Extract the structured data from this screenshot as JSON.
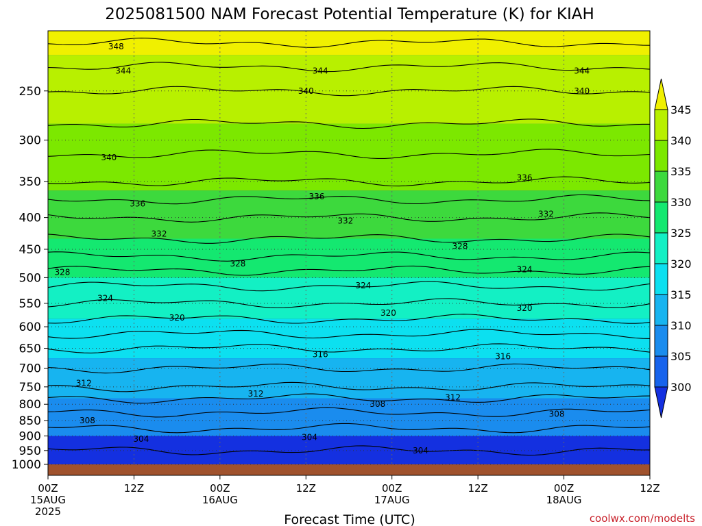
{
  "chart_data": {
    "type": "heatmap",
    "title": "2025081500 NAM Forecast Potential Temperature (K) for KIAH",
    "xlabel": "Forecast Time (UTC)",
    "ylabel": "",
    "credit": "coolwx.com/modelts",
    "x_ticks": [
      {
        "hour": 0,
        "line1": "00Z",
        "line2": "15AUG",
        "line3": "2025"
      },
      {
        "hour": 12,
        "line1": "12Z",
        "line2": "",
        "line3": ""
      },
      {
        "hour": 24,
        "line1": "00Z",
        "line2": "16AUG",
        "line3": ""
      },
      {
        "hour": 36,
        "line1": "12Z",
        "line2": "",
        "line3": ""
      },
      {
        "hour": 48,
        "line1": "00Z",
        "line2": "17AUG",
        "line3": ""
      },
      {
        "hour": 60,
        "line1": "12Z",
        "line2": "",
        "line3": ""
      },
      {
        "hour": 72,
        "line1": "00Z",
        "line2": "18AUG",
        "line3": ""
      },
      {
        "hour": 84,
        "line1": "12Z",
        "line2": "",
        "line3": ""
      }
    ],
    "xlim_hours": [
      0,
      84
    ],
    "y_axis": "pressure (hPa), log scale, decreasing upward",
    "y_ticks": [
      250,
      300,
      350,
      400,
      450,
      500,
      550,
      600,
      650,
      700,
      750,
      800,
      850,
      900,
      950,
      1000
    ],
    "ylim": [
      1000,
      200
    ],
    "grid": "dotted",
    "colorbar": {
      "levels": [
        300,
        305,
        310,
        315,
        320,
        325,
        330,
        335,
        340,
        345
      ],
      "colors": [
        "#1430e0",
        "#1763ec",
        "#1a8cee",
        "#17b4f0",
        "#0ce0f0",
        "#13f0c4",
        "#14e870",
        "#3dd93d",
        "#7ce800",
        "#b8f000",
        "#f0f000"
      ],
      "labels": [
        "300",
        "305",
        "310",
        "315",
        "320",
        "325",
        "330",
        "335",
        "340",
        "345"
      ]
    },
    "profile": [
      {
        "p": 1000,
        "theta": 303
      },
      {
        "p": 950,
        "theta": 304
      },
      {
        "p": 900,
        "theta": 305
      },
      {
        "p": 850,
        "theta": 307
      },
      {
        "p": 800,
        "theta": 309
      },
      {
        "p": 750,
        "theta": 312
      },
      {
        "p": 700,
        "theta": 314
      },
      {
        "p": 650,
        "theta": 316
      },
      {
        "p": 600,
        "theta": 319
      },
      {
        "p": 550,
        "theta": 322
      },
      {
        "p": 500,
        "theta": 325
      },
      {
        "p": 450,
        "theta": 329
      },
      {
        "p": 400,
        "theta": 332
      },
      {
        "p": 350,
        "theta": 336
      },
      {
        "p": 300,
        "theta": 339
      },
      {
        "p": 250,
        "theta": 342
      },
      {
        "p": 200,
        "theta": 347
      }
    ],
    "contour_labels": [
      {
        "hour": 9.5,
        "p": 212,
        "value": "348"
      },
      {
        "hour": 10.5,
        "p": 232,
        "value": "344"
      },
      {
        "hour": 38.0,
        "p": 232,
        "value": "344"
      },
      {
        "hour": 74.5,
        "p": 232,
        "value": "344"
      },
      {
        "hour": 36.0,
        "p": 250,
        "value": "340"
      },
      {
        "hour": 74.5,
        "p": 250,
        "value": "340"
      },
      {
        "hour": 8.5,
        "p": 320,
        "value": "340"
      },
      {
        "hour": 12.5,
        "p": 380,
        "value": "336"
      },
      {
        "hour": 37.5,
        "p": 370,
        "value": "336"
      },
      {
        "hour": 66.5,
        "p": 345,
        "value": "336"
      },
      {
        "hour": 15.5,
        "p": 425,
        "value": "332"
      },
      {
        "hour": 41.5,
        "p": 405,
        "value": "332"
      },
      {
        "hour": 69.5,
        "p": 395,
        "value": "332"
      },
      {
        "hour": 2.0,
        "p": 490,
        "value": "328"
      },
      {
        "hour": 26.5,
        "p": 475,
        "value": "328"
      },
      {
        "hour": 57.5,
        "p": 445,
        "value": "328"
      },
      {
        "hour": 8.0,
        "p": 540,
        "value": "324"
      },
      {
        "hour": 44.0,
        "p": 515,
        "value": "324"
      },
      {
        "hour": 66.5,
        "p": 485,
        "value": "324"
      },
      {
        "hour": 18.0,
        "p": 580,
        "value": "320"
      },
      {
        "hour": 47.5,
        "p": 570,
        "value": "320"
      },
      {
        "hour": 66.5,
        "p": 560,
        "value": "320"
      },
      {
        "hour": 38.0,
        "p": 665,
        "value": "316"
      },
      {
        "hour": 63.5,
        "p": 670,
        "value": "316"
      },
      {
        "hour": 5.0,
        "p": 740,
        "value": "312"
      },
      {
        "hour": 29.0,
        "p": 770,
        "value": "312"
      },
      {
        "hour": 56.5,
        "p": 780,
        "value": "312"
      },
      {
        "hour": 5.5,
        "p": 850,
        "value": "308"
      },
      {
        "hour": 46.0,
        "p": 800,
        "value": "308"
      },
      {
        "hour": 71.0,
        "p": 830,
        "value": "308"
      },
      {
        "hour": 13.0,
        "p": 910,
        "value": "304"
      },
      {
        "hour": 36.5,
        "p": 905,
        "value": "304"
      },
      {
        "hour": 52.0,
        "p": 950,
        "value": "304"
      }
    ]
  }
}
